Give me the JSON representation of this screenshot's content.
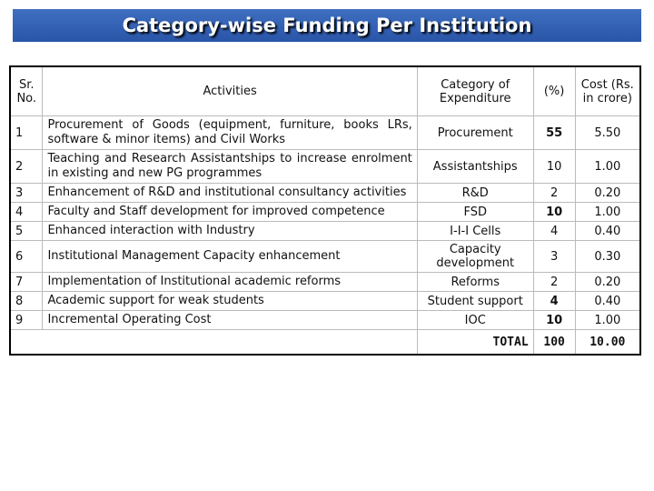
{
  "header": {
    "title": "Category-wise Funding Per Institution"
  },
  "table": {
    "columns": [
      "Sr. No.",
      "Activities",
      "Category of Expenditure",
      "(%)",
      "Cost (Rs. in crore)"
    ],
    "rows": [
      [
        "1",
        "Procurement of Goods (equipment, furniture, books LRs, software & minor items) and Civil Works",
        "Procurement",
        "55",
        "5.50"
      ],
      [
        "2",
        "Teaching and Research Assistantships to increase enrolment in existing and new PG programmes",
        "Assistantships",
        "10",
        "1.00"
      ],
      [
        "3",
        "Enhancement of R&D and institutional consultancy activities",
        "R&D",
        "2",
        "0.20"
      ],
      [
        "4",
        "Faculty and Staff development for improved competence",
        "FSD",
        "10",
        "1.00"
      ],
      [
        "5",
        "Enhanced interaction with Industry",
        "I-I-I Cells",
        "4",
        "0.40"
      ],
      [
        "6",
        "Institutional Management Capacity enhancement",
        "Capacity development",
        "3",
        "0.30"
      ],
      [
        "7",
        "Implementation of Institutional academic reforms",
        "Reforms",
        "2",
        "0.20"
      ],
      [
        "8",
        "Academic support for weak students",
        "Student support",
        "4",
        "0.40"
      ],
      [
        "9",
        "Incremental Operating Cost",
        "IOC",
        "10",
        "1.00"
      ]
    ],
    "total": [
      "TOTAL",
      "100",
      "10.00"
    ]
  }
}
